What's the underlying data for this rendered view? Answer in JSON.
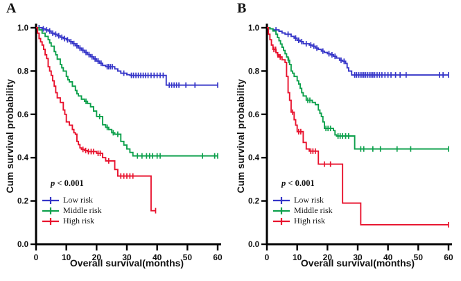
{
  "figure_bg": "#ffffff",
  "axis_color": "#000000",
  "chart_data": [
    {
      "type": "line",
      "subtype": "kaplan-meier-step",
      "panel_label": "A",
      "xlabel": "Overall survival(months)",
      "ylabel": "Cum survival probability",
      "xlim": [
        0,
        60
      ],
      "ylim": [
        0.0,
        1.0
      ],
      "xticks": [
        0,
        10,
        20,
        30,
        40,
        50,
        60
      ],
      "yticks": [
        "0.0",
        "0.2",
        "0.4",
        "0.6",
        "0.8",
        "1.0"
      ],
      "grid": false,
      "legend_position": "lower-left-inside",
      "pvalue_var": "p",
      "pvalue_rest": " < 0.001",
      "legend": [
        {
          "label": "Low risk",
          "color": "#3535c8"
        },
        {
          "label": "Middle risk",
          "color": "#0da04c"
        },
        {
          "label": "High risk",
          "color": "#e8122d"
        }
      ],
      "series": [
        {
          "name": "Low risk",
          "color": "#3535c8",
          "end": 60,
          "steps": [
            [
              0,
              1
            ],
            [
              2,
              0.995
            ],
            [
              3,
              0.99
            ],
            [
              4,
              0.985
            ],
            [
              5,
              0.975
            ],
            [
              6,
              0.97
            ],
            [
              7,
              0.963
            ],
            [
              8,
              0.956
            ],
            [
              9,
              0.95
            ],
            [
              10,
              0.944
            ],
            [
              11,
              0.936
            ],
            [
              12,
              0.927
            ],
            [
              13,
              0.917
            ],
            [
              14,
              0.906
            ],
            [
              15,
              0.896
            ],
            [
              16,
              0.886
            ],
            [
              17,
              0.876
            ],
            [
              18,
              0.866
            ],
            [
              19,
              0.856
            ],
            [
              20,
              0.846
            ],
            [
              21,
              0.836
            ],
            [
              22,
              0.826
            ],
            [
              23,
              0.82
            ],
            [
              26,
              0.81
            ],
            [
              27,
              0.8
            ],
            [
              28,
              0.79
            ],
            [
              30,
              0.783
            ],
            [
              31,
              0.78
            ],
            [
              43,
              0.735
            ]
          ],
          "censors": [
            1,
            2.4,
            3.5,
            4.5,
            5.5,
            6.5,
            7.5,
            8.5,
            9.4,
            10.4,
            11.5,
            12.5,
            13.5,
            14.5,
            15.5,
            16.5,
            17.5,
            18.5,
            19.5,
            20.5,
            21.5,
            23.5,
            24,
            24.6,
            25.2,
            29,
            31.5,
            32.2,
            33,
            33.8,
            34.6,
            35.4,
            36.2,
            37,
            38,
            39,
            40,
            41,
            42,
            44,
            44.8,
            45.6,
            46.4,
            47.2,
            49.5,
            52.5,
            60
          ]
        },
        {
          "name": "Middle risk",
          "color": "#0da04c",
          "end": 60,
          "steps": [
            [
              0,
              1
            ],
            [
              1,
              0.99
            ],
            [
              2,
              0.975
            ],
            [
              3,
              0.96
            ],
            [
              4,
              0.945
            ],
            [
              4.5,
              0.93
            ],
            [
              5,
              0.915
            ],
            [
              6,
              0.89
            ],
            [
              6.5,
              0.875
            ],
            [
              7,
              0.855
            ],
            [
              8,
              0.83
            ],
            [
              8.5,
              0.815
            ],
            [
              9,
              0.8
            ],
            [
              10,
              0.775
            ],
            [
              10.5,
              0.76
            ],
            [
              11,
              0.75
            ],
            [
              12,
              0.73
            ],
            [
              13,
              0.71
            ],
            [
              13.5,
              0.695
            ],
            [
              14,
              0.685
            ],
            [
              15,
              0.67
            ],
            [
              16,
              0.66
            ],
            [
              17,
              0.65
            ],
            [
              18,
              0.635
            ],
            [
              19,
              0.615
            ],
            [
              20,
              0.59
            ],
            [
              22,
              0.552
            ],
            [
              23,
              0.54
            ],
            [
              24,
              0.53
            ],
            [
              25,
              0.515
            ],
            [
              26,
              0.508
            ],
            [
              28,
              0.475
            ],
            [
              29,
              0.458
            ],
            [
              30,
              0.44
            ],
            [
              31,
              0.424
            ],
            [
              32,
              0.408
            ]
          ],
          "censors": [
            16.5,
            21,
            23.5,
            25.5,
            27,
            33.5,
            35,
            36.5,
            37.5,
            38.5,
            40,
            41,
            55,
            59,
            60
          ]
        },
        {
          "name": "High risk",
          "color": "#e8122d",
          "end": 39.5,
          "steps": [
            [
              0,
              1
            ],
            [
              0.5,
              0.975
            ],
            [
              1,
              0.95
            ],
            [
              1.5,
              0.935
            ],
            [
              2,
              0.92
            ],
            [
              2.5,
              0.9
            ],
            [
              3,
              0.875
            ],
            [
              3.5,
              0.858
            ],
            [
              4,
              0.82
            ],
            [
              4.5,
              0.8
            ],
            [
              5,
              0.78
            ],
            [
              5.5,
              0.755
            ],
            [
              6,
              0.73
            ],
            [
              6.5,
              0.7
            ],
            [
              7,
              0.676
            ],
            [
              8,
              0.655
            ],
            [
              9,
              0.62
            ],
            [
              9.5,
              0.6
            ],
            [
              10,
              0.565
            ],
            [
              11,
              0.55
            ],
            [
              12,
              0.53
            ],
            [
              12.5,
              0.515
            ],
            [
              13,
              0.508
            ],
            [
              13.5,
              0.475
            ],
            [
              14,
              0.46
            ],
            [
              14.5,
              0.445
            ],
            [
              15,
              0.438
            ],
            [
              16,
              0.433
            ],
            [
              17,
              0.428
            ],
            [
              20,
              0.42
            ],
            [
              22,
              0.4
            ],
            [
              23,
              0.385
            ],
            [
              26,
              0.345
            ],
            [
              27,
              0.315
            ],
            [
              38,
              0.155
            ]
          ],
          "censors": [
            15.5,
            16.4,
            17.3,
            18.2,
            19,
            20.5,
            21.2,
            24,
            28,
            29,
            30,
            31,
            32,
            39.5
          ]
        }
      ]
    },
    {
      "type": "line",
      "subtype": "kaplan-meier-step",
      "panel_label": "B",
      "xlabel": "Overall survival(months)",
      "ylabel": "Cum survival probability",
      "xlim": [
        0,
        60
      ],
      "ylim": [
        0.0,
        1.0
      ],
      "xticks": [
        0,
        10,
        20,
        30,
        40,
        50,
        60
      ],
      "yticks": [
        "0.0",
        "0.2",
        "0.4",
        "0.6",
        "0.8",
        "1.0"
      ],
      "grid": false,
      "legend_position": "lower-left-inside",
      "pvalue_var": "p",
      "pvalue_rest": " < 0.001",
      "legend": [
        {
          "label": "Low risk",
          "color": "#3535c8"
        },
        {
          "label": "Middle risk",
          "color": "#0da04c"
        },
        {
          "label": "High risk",
          "color": "#e8122d"
        }
      ],
      "series": [
        {
          "name": "Low risk",
          "color": "#3535c8",
          "end": 60,
          "steps": [
            [
              0,
              1
            ],
            [
              1,
              0.995
            ],
            [
              2,
              0.99
            ],
            [
              4,
              0.984
            ],
            [
              5,
              0.976
            ],
            [
              6,
              0.97
            ],
            [
              8,
              0.96
            ],
            [
              9,
              0.952
            ],
            [
              10,
              0.942
            ],
            [
              11,
              0.936
            ],
            [
              12,
              0.926
            ],
            [
              14,
              0.92
            ],
            [
              15,
              0.915
            ],
            [
              16,
              0.906
            ],
            [
              17,
              0.9
            ],
            [
              18,
              0.892
            ],
            [
              19,
              0.886
            ],
            [
              20,
              0.88
            ],
            [
              21,
              0.875
            ],
            [
              22,
              0.868
            ],
            [
              23,
              0.86
            ],
            [
              24,
              0.85
            ],
            [
              25,
              0.845
            ],
            [
              26,
              0.835
            ],
            [
              26.5,
              0.815
            ],
            [
              27,
              0.8
            ],
            [
              28,
              0.782
            ]
          ],
          "censors": [
            3,
            7,
            9.5,
            10.5,
            11.5,
            13,
            14.5,
            15.5,
            16.5,
            18.5,
            20.5,
            21.5,
            22.5,
            24.5,
            25.5,
            29,
            29.6,
            30.2,
            30.8,
            31.4,
            32,
            32.6,
            33.2,
            33.8,
            34.4,
            35,
            35.6,
            36.4,
            37.2,
            38,
            39,
            40,
            41,
            42.5,
            44,
            46,
            57,
            58.2,
            60
          ]
        },
        {
          "name": "Middle risk",
          "color": "#0da04c",
          "end": 60,
          "steps": [
            [
              0,
              1
            ],
            [
              1,
              0.995
            ],
            [
              2,
              0.985
            ],
            [
              3,
              0.97
            ],
            [
              3.5,
              0.955
            ],
            [
              4,
              0.94
            ],
            [
              4.5,
              0.925
            ],
            [
              5,
              0.91
            ],
            [
              5.5,
              0.895
            ],
            [
              6,
              0.88
            ],
            [
              6.5,
              0.865
            ],
            [
              7,
              0.85
            ],
            [
              7.5,
              0.83
            ],
            [
              8,
              0.8
            ],
            [
              8.5,
              0.79
            ],
            [
              9,
              0.775
            ],
            [
              10,
              0.755
            ],
            [
              10.5,
              0.74
            ],
            [
              11,
              0.72
            ],
            [
              11.5,
              0.7
            ],
            [
              12,
              0.685
            ],
            [
              13,
              0.665
            ],
            [
              15,
              0.655
            ],
            [
              16,
              0.645
            ],
            [
              17,
              0.62
            ],
            [
              17.5,
              0.605
            ],
            [
              18,
              0.59
            ],
            [
              18.5,
              0.565
            ],
            [
              19,
              0.535
            ],
            [
              22,
              0.525
            ],
            [
              22.5,
              0.505
            ],
            [
              23,
              0.5
            ],
            [
              29,
              0.44
            ]
          ],
          "censors": [
            7.2,
            13.5,
            14.2,
            19.5,
            20.2,
            21,
            23.5,
            24.2,
            25,
            26,
            27,
            31,
            32,
            35,
            37.5,
            43,
            47.5,
            60
          ]
        },
        {
          "name": "High risk",
          "color": "#e8122d",
          "end": 60,
          "steps": [
            [
              0,
              1
            ],
            [
              0.5,
              0.97
            ],
            [
              1,
              0.945
            ],
            [
              1.5,
              0.92
            ],
            [
              2,
              0.9
            ],
            [
              3,
              0.885
            ],
            [
              3.5,
              0.875
            ],
            [
              4,
              0.865
            ],
            [
              5,
              0.852
            ],
            [
              6,
              0.84
            ],
            [
              6.5,
              0.775
            ],
            [
              7,
              0.7
            ],
            [
              7.5,
              0.665
            ],
            [
              8,
              0.61
            ],
            [
              9,
              0.575
            ],
            [
              9.5,
              0.55
            ],
            [
              10,
              0.52
            ],
            [
              12,
              0.47
            ],
            [
              13,
              0.44
            ],
            [
              14,
              0.43
            ],
            [
              17,
              0.37
            ],
            [
              25,
              0.19
            ],
            [
              31,
              0.09
            ]
          ],
          "censors": [
            2.3,
            2.9,
            3.6,
            4.4,
            8.5,
            10.5,
            11.2,
            14.5,
            15.2,
            16,
            19,
            21,
            60
          ]
        }
      ]
    }
  ]
}
